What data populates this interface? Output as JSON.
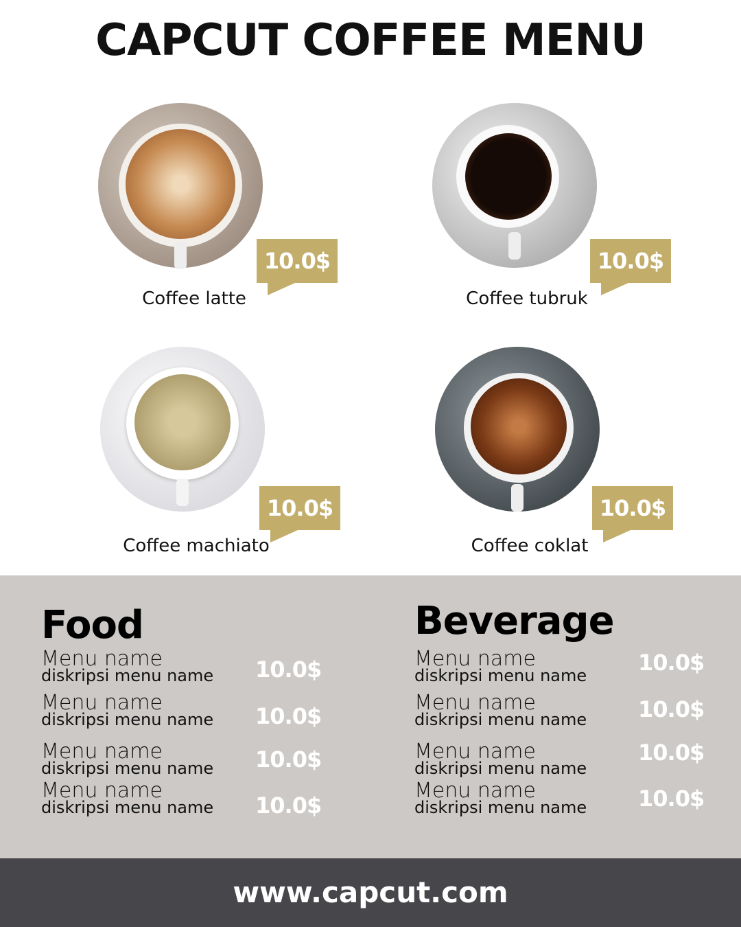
{
  "title": "CAPCUT COFFEE MENU",
  "colors": {
    "accent": "#c2ad6a",
    "panel": "#cdc9c6",
    "footer": "#47464b"
  },
  "coffees": [
    {
      "name": "Coffee latte",
      "price": "10.0$"
    },
    {
      "name": "Coffee tubruk",
      "price": "10.0$"
    },
    {
      "name": "Coffee machiato",
      "price": "10.0$"
    },
    {
      "name": "Coffee coklat",
      "price": "10.0$"
    }
  ],
  "food": {
    "heading": "Food",
    "items": [
      {
        "name": "Menu name",
        "desc": "diskripsi menu name",
        "price": "10.0$"
      },
      {
        "name": "Menu name",
        "desc": "diskripsi menu name",
        "price": "10.0$"
      },
      {
        "name": "Menu name",
        "desc": "diskripsi menu name",
        "price": "10.0$"
      },
      {
        "name": "Menu name",
        "desc": "diskripsi menu name",
        "price": "10.0$"
      }
    ]
  },
  "beverage": {
    "heading": "Beverage",
    "items": [
      {
        "name": "Menu name",
        "desc": "diskripsi menu name",
        "price": "10.0$"
      },
      {
        "name": "Menu name",
        "desc": "diskripsi menu name",
        "price": "10.0$"
      },
      {
        "name": "Menu name",
        "desc": "diskripsi menu name",
        "price": "10.0$"
      },
      {
        "name": "Menu name",
        "desc": "diskripsi menu name",
        "price": "10.0$"
      }
    ]
  },
  "footer": {
    "url": "www.capcut.com"
  }
}
